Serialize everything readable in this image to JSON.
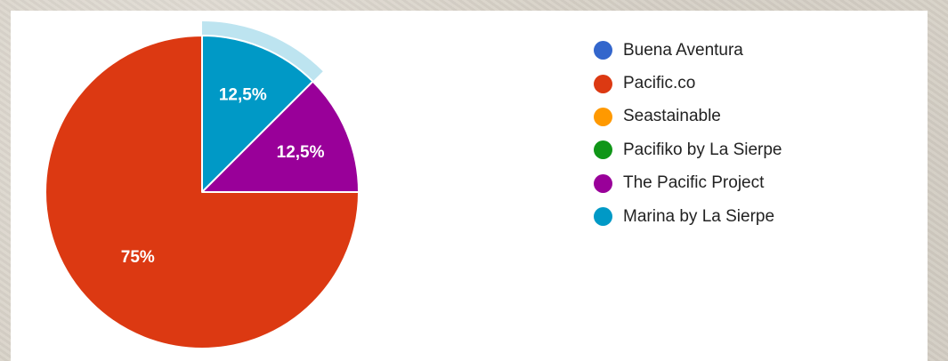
{
  "chart_data": {
    "type": "pie",
    "slices": [
      {
        "name": "Buena Aventura",
        "value": 0,
        "label": "",
        "color": "#3366cc"
      },
      {
        "name": "Pacific.co",
        "value": 75,
        "label": "75%",
        "color": "#dc3912"
      },
      {
        "name": "Seastainable",
        "value": 0,
        "label": "",
        "color": "#ff9900"
      },
      {
        "name": "Pacifiko by La Sierpe",
        "value": 0,
        "label": "",
        "color": "#109618"
      },
      {
        "name": "The Pacific Project",
        "value": 12.5,
        "label": "12,5%",
        "color": "#990099"
      },
      {
        "name": "Marina by La Sierpe",
        "value": 12.5,
        "label": "12,5%",
        "color": "#0099c6",
        "highlighted": true
      }
    ],
    "legend_position": "right",
    "highlight_color": "#bde4f0"
  }
}
